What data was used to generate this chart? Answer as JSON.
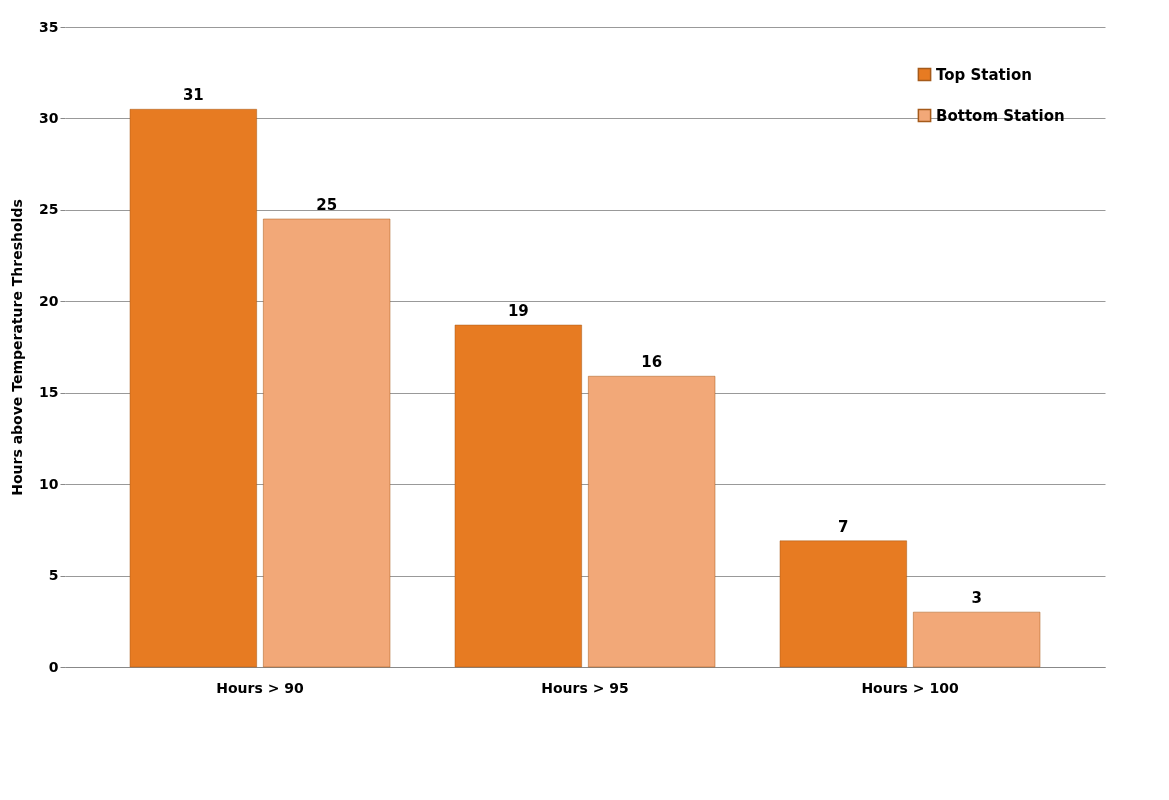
{
  "chart_data": {
    "type": "bar",
    "ylabel": "Hours above Temperature Thresholds",
    "categories": [
      "Hours > 90",
      "Hours > 95",
      "Hours > 100"
    ],
    "series": [
      {
        "name": "Top Station",
        "color": "#e77b22",
        "values": [
          30.5,
          18.7,
          6.9
        ],
        "value_labels": [
          "31",
          "19",
          "7"
        ]
      },
      {
        "name": "Bottom Station",
        "color": "#f2a878",
        "values": [
          24.5,
          15.9,
          3.0
        ],
        "value_labels": [
          "25",
          "16",
          "3"
        ]
      }
    ],
    "ylim": [
      0,
      35
    ],
    "yticks": [
      0,
      5,
      10,
      15,
      20,
      25,
      30,
      35
    ],
    "grid": "y",
    "legend": "top right"
  }
}
